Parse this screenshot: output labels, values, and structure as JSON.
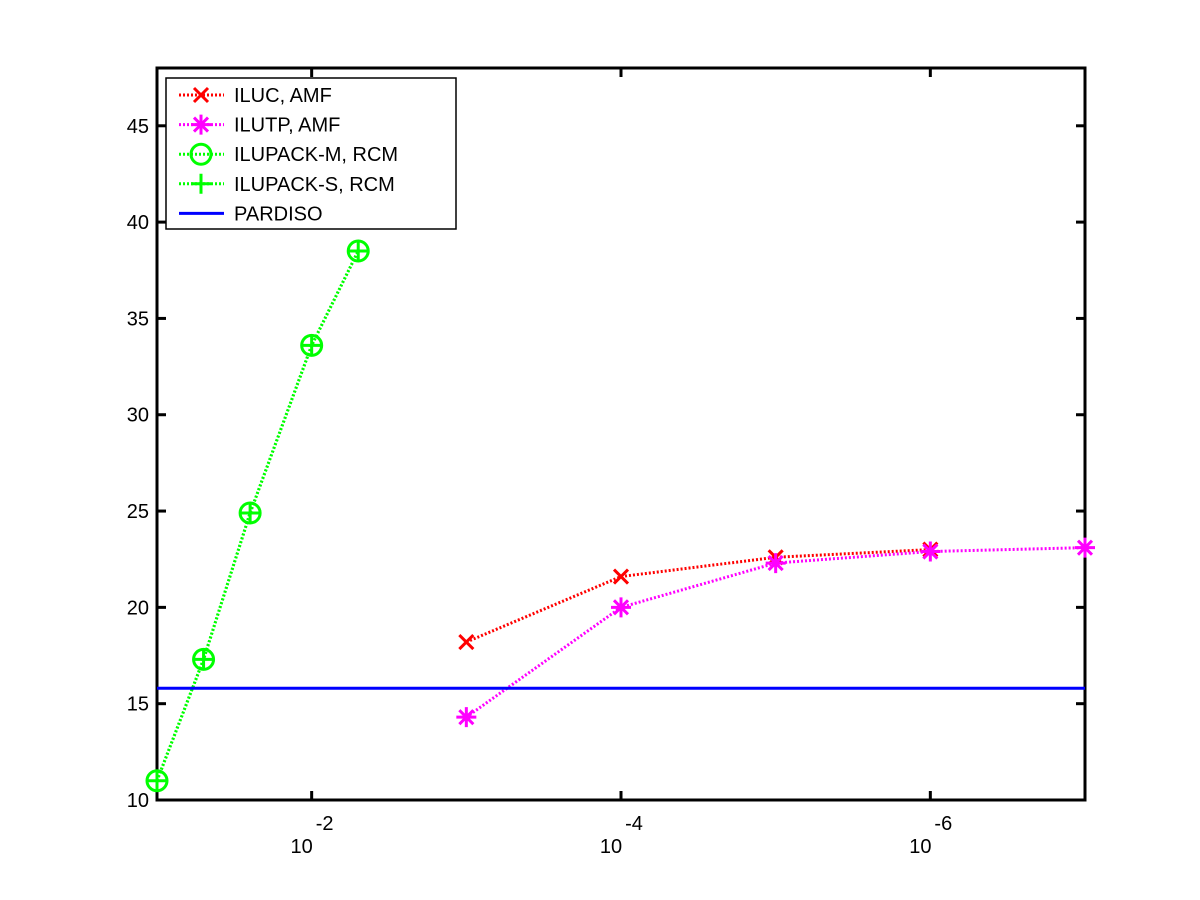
{
  "chart_data": {
    "type": "line",
    "title": "",
    "xlabel": "",
    "ylabel": "",
    "x_scale": "log",
    "x_reversed": true,
    "x_ticks": [
      {
        "value": 0.01,
        "base": "10",
        "exp": "-2"
      },
      {
        "value": 0.0001,
        "base": "10",
        "exp": "-4"
      },
      {
        "value": 1e-06,
        "base": "10",
        "exp": "-6"
      }
    ],
    "xlim": [
      0.1,
      1e-07
    ],
    "ylim": [
      10,
      48
    ],
    "y_ticks": [
      10,
      15,
      20,
      25,
      30,
      35,
      40,
      45
    ],
    "grid": false,
    "legend_position": "top-left",
    "series": [
      {
        "name": "ILUC, AMF",
        "color": "#ff0000",
        "marker": "x",
        "line": "dotted",
        "x": [
          0.001,
          0.0001,
          1e-05,
          1e-06
        ],
        "y": [
          18.2,
          21.6,
          22.6,
          23.0
        ]
      },
      {
        "name": "ILUTP, AMF",
        "color": "#ff00ff",
        "marker": "asterisk",
        "line": "dotted",
        "x": [
          0.001,
          0.0001,
          1e-05,
          1e-06,
          1e-07
        ],
        "y": [
          14.3,
          20.0,
          22.3,
          22.9,
          23.1
        ]
      },
      {
        "name": "ILUPACK-M, RCM",
        "color": "#00ff00",
        "marker": "circle",
        "line": "dotted",
        "x": [
          0.1,
          0.05,
          0.025,
          0.01,
          0.005
        ],
        "y": [
          11.0,
          17.3,
          24.9,
          33.6,
          38.5
        ]
      },
      {
        "name": "ILUPACK-S, RCM",
        "color": "#00ff00",
        "marker": "plus",
        "line": "dotted",
        "x": [
          0.1,
          0.05,
          0.025,
          0.01,
          0.005
        ],
        "y": [
          11.0,
          17.3,
          24.9,
          33.6,
          38.5
        ]
      },
      {
        "name": "PARDISO",
        "color": "#0000ff",
        "marker": "none",
        "line": "solid",
        "x": [
          0.1,
          1e-07
        ],
        "y": [
          15.8,
          15.8
        ]
      }
    ]
  }
}
